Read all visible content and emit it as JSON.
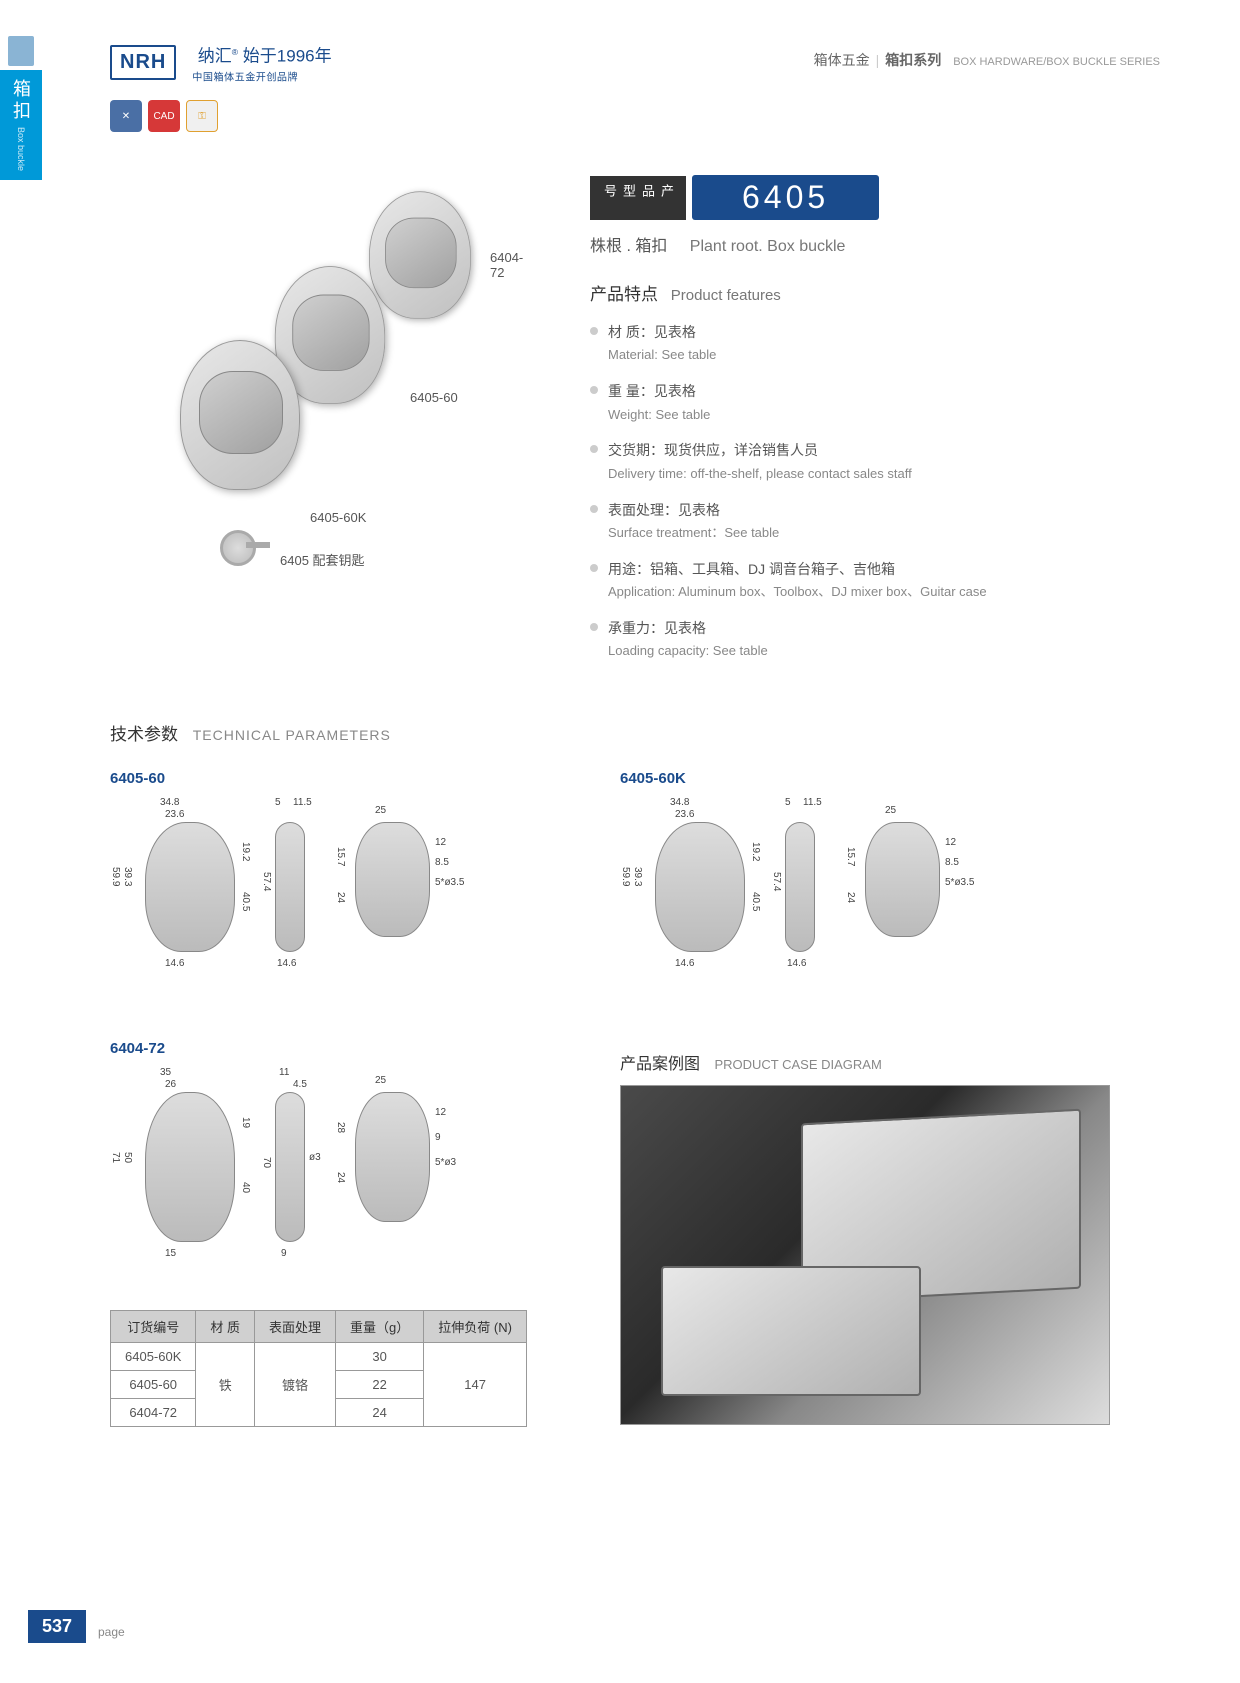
{
  "sideTab": {
    "cn": "箱扣",
    "en": "Box buckle"
  },
  "logo": {
    "box": "NRH",
    "line1": "纳汇",
    "sup": "®",
    "line1b": "始于1996年",
    "line2": "中国箱体五金开创品牌"
  },
  "crumb": {
    "a": "箱体五金",
    "b": "箱扣系列",
    "en": "BOX HARDWARE/BOX BUCKLE SERIES"
  },
  "iconBadges": {
    "b2": "CAD"
  },
  "productImages": {
    "label1": "6404-72",
    "label2": "6405-60",
    "label3": "6405-60K",
    "keyLabel": "6405 配套钥匙"
  },
  "badge": {
    "left": "产品型号",
    "num": "6405"
  },
  "subtitle": {
    "cn": "株根 . 箱扣",
    "en": "Plant root. Box buckle"
  },
  "featuresTitle": {
    "cn": "产品特点",
    "en": "Product features"
  },
  "features": [
    {
      "cn": "材 质：见表格",
      "en": "Material: See table"
    },
    {
      "cn": "重 量：见表格",
      "en": "Weight: See table"
    },
    {
      "cn": "交货期：现货供应，详洽销售人员",
      "en": "Delivery time: off-the-shelf, please contact sales staff"
    },
    {
      "cn": "表面处理：见表格",
      "en": "Surface treatment：See table"
    },
    {
      "cn": "用途：铝箱、工具箱、DJ 调音台箱子、吉他箱",
      "en": "Application: Aluminum box、Toolbox、DJ mixer box、Guitar case"
    },
    {
      "cn": "承重力：见表格",
      "en": "Loading capacity: See table"
    }
  ],
  "techTitle": {
    "cn": "技术参数",
    "en": "TECHNICAL PARAMETERS"
  },
  "diagrams": {
    "d1": {
      "label": "6405-60",
      "dims": {
        "top1": "34.8",
        "top2": "23.6",
        "left1": "59.9",
        "left2": "39.3",
        "left3": "19.2",
        "left4": "40.5",
        "bot": "14.6",
        "side_top": "5",
        "side_top2": "11.5",
        "side_h": "57.4",
        "side_bot": "14.6",
        "back_top": "25",
        "back_l1": "15.7",
        "back_l2": "24",
        "back_r1": "12",
        "back_r2": "8.5",
        "back_hole": "5*ø3.5"
      }
    },
    "d2": {
      "label": "6405-60K",
      "dims": {
        "top1": "34.8",
        "top2": "23.6",
        "left1": "59.9",
        "left2": "39.3",
        "left3": "19.2",
        "left4": "40.5",
        "bot": "14.6",
        "side_top": "5",
        "side_top2": "11.5",
        "side_h": "57.4",
        "side_bot": "14.6",
        "back_top": "25",
        "back_l1": "15.7",
        "back_l2": "24",
        "back_r1": "12",
        "back_r2": "8.5",
        "back_hole": "5*ø3.5"
      }
    },
    "d3": {
      "label": "6404-72",
      "dims": {
        "top1": "35",
        "top2": "26",
        "left1": "71",
        "left2": "50",
        "left3": "19",
        "left4": "40",
        "bot": "15",
        "side_top": "11",
        "side_top2": "4.5",
        "side_h": "70",
        "side_hole": "ø3",
        "side_bot": "9",
        "back_top": "25",
        "back_l1": "28",
        "back_l2": "24",
        "back_r1": "12",
        "back_r2": "9",
        "back_hole": "5*ø3"
      }
    }
  },
  "caseTitle": {
    "cn": "产品案例图",
    "en": "PRODUCT CASE DIAGRAM"
  },
  "table": {
    "headers": [
      "订货编号",
      "材 质",
      "表面处理",
      "重量（g）",
      "拉伸负荷 (N)"
    ],
    "rows": [
      [
        "6405-60K",
        "",
        "",
        "30",
        ""
      ],
      [
        "6405-60",
        "铁",
        "镀铬",
        "22",
        "147"
      ],
      [
        "6404-72",
        "",
        "",
        "24",
        ""
      ]
    ],
    "material": "铁",
    "treatment": "镀铬",
    "load": "147"
  },
  "page": {
    "num": "537",
    "label": "page"
  },
  "colors": {
    "brand": "#1a4b8c",
    "accent": "#0099d8",
    "text": "#333",
    "muted": "#888"
  }
}
